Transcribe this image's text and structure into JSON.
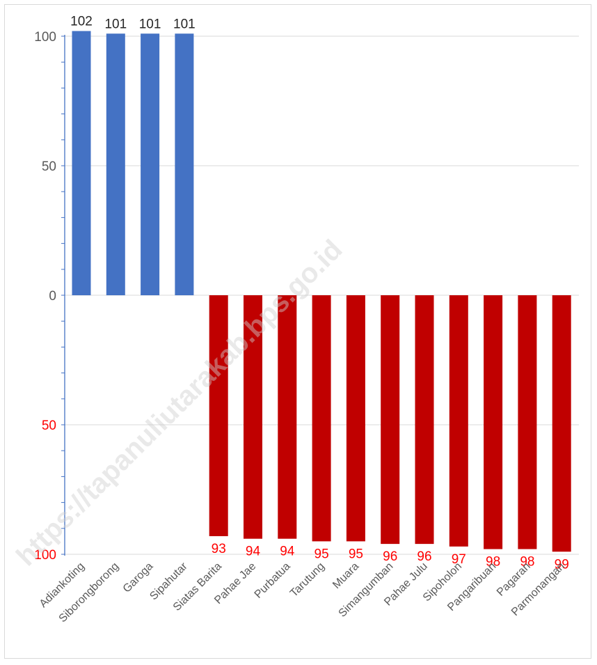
{
  "chart_data": {
    "type": "bar",
    "title": "",
    "xlabel": "",
    "ylabel": "",
    "ylim": [
      -100,
      100
    ],
    "y_ticks": [
      {
        "value": 100,
        "label": "100",
        "color": "#595959"
      },
      {
        "value": 50,
        "label": "50",
        "color": "#595959"
      },
      {
        "value": 0,
        "label": "0",
        "color": "#595959"
      },
      {
        "value": -50,
        "label": "50",
        "color": "#ff0000"
      },
      {
        "value": -100,
        "label": "100",
        "color": "#ff0000"
      }
    ],
    "grid": true,
    "categories": [
      "Adiankoting",
      "Siborongborong",
      "Garoga",
      "Sipahutar",
      "Siatas Barita",
      "Pahae Jae",
      "Purbatua",
      "Tarutung",
      "Muara",
      "Simangumban",
      "Pahae Julu",
      "Sipoholon",
      "Pangaribuan",
      "Pagaran",
      "Parmonangan"
    ],
    "values": [
      102,
      101,
      101,
      101,
      93,
      94,
      94,
      95,
      95,
      96,
      96,
      97,
      98,
      98,
      99
    ],
    "direction": [
      "up",
      "up",
      "up",
      "up",
      "down",
      "down",
      "down",
      "down",
      "down",
      "down",
      "down",
      "down",
      "down",
      "down",
      "down"
    ],
    "colors": {
      "up": "#4472c4",
      "down": "#c00000",
      "up_label": "#262626",
      "down_label": "#ff0000"
    }
  },
  "watermark": "https://tapanuliutarakab.bps.go.id"
}
